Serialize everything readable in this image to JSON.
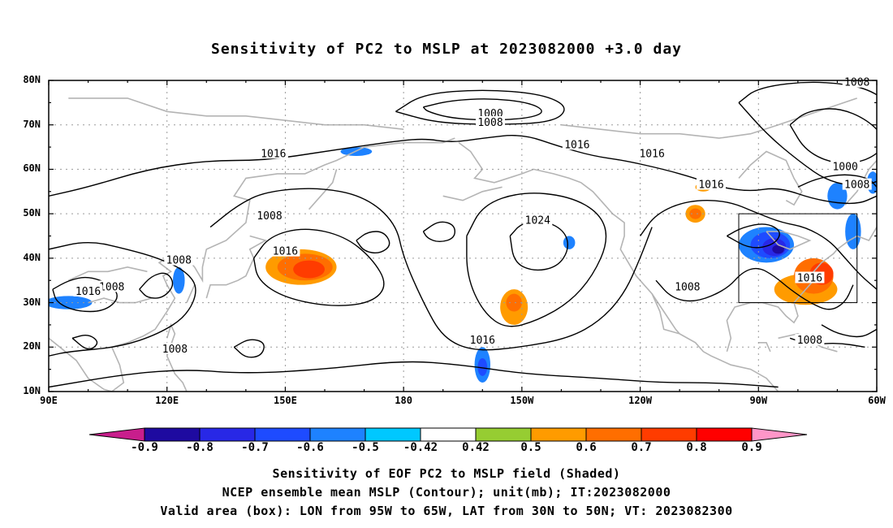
{
  "title": "Sensitivity of PC2 to MSLP at 2023082000 +3.0 day",
  "map": {
    "lon_range": [
      90,
      300
    ],
    "lat_range": [
      10,
      80
    ],
    "lat_ticks": [
      {
        "value": 80,
        "label": "80N"
      },
      {
        "value": 70,
        "label": "70N"
      },
      {
        "value": 60,
        "label": "60N"
      },
      {
        "value": 50,
        "label": "50N"
      },
      {
        "value": 40,
        "label": "40N"
      },
      {
        "value": 30,
        "label": "30N"
      },
      {
        "value": 20,
        "label": "20N"
      },
      {
        "value": 10,
        "label": "10N"
      }
    ],
    "lon_ticks": [
      {
        "value": 90,
        "label": "90E"
      },
      {
        "value": 120,
        "label": "120E"
      },
      {
        "value": 150,
        "label": "150E"
      },
      {
        "value": 180,
        "label": "180"
      },
      {
        "value": 210,
        "label": "150W"
      },
      {
        "value": 240,
        "label": "120W"
      },
      {
        "value": 270,
        "label": "90W"
      },
      {
        "value": 300,
        "label": "60W"
      }
    ],
    "valid_box": {
      "lon": [
        265,
        295
      ],
      "lat": [
        30,
        50
      ]
    },
    "contour_labels": [
      {
        "text": "1000",
        "lon": 202,
        "lat": 72.5
      },
      {
        "text": "1008",
        "lon": 202,
        "lat": 70.5
      },
      {
        "text": "1016",
        "lon": 147,
        "lat": 63.5
      },
      {
        "text": "1016",
        "lon": 224,
        "lat": 65.5
      },
      {
        "text": "1016",
        "lon": 243,
        "lat": 63.5
      },
      {
        "text": "1016",
        "lon": 258,
        "lat": 56.5
      },
      {
        "text": "1008",
        "lon": 295,
        "lat": 79.5
      },
      {
        "text": "1000",
        "lon": 292,
        "lat": 60.5
      },
      {
        "text": "1008",
        "lon": 295,
        "lat": 56.5
      },
      {
        "text": "1008",
        "lon": 146,
        "lat": 49.5
      },
      {
        "text": "1016",
        "lon": 150,
        "lat": 41.5
      },
      {
        "text": "1024",
        "lon": 214,
        "lat": 48.5
      },
      {
        "text": "1008",
        "lon": 123,
        "lat": 39.5
      },
      {
        "text": "1008",
        "lon": 106,
        "lat": 33.5
      },
      {
        "text": "1016",
        "lon": 100,
        "lat": 32.5
      },
      {
        "text": "1008",
        "lon": 122,
        "lat": 19.5
      },
      {
        "text": "1016",
        "lon": 200,
        "lat": 21.5
      },
      {
        "text": "1008",
        "lon": 252,
        "lat": 33.5
      },
      {
        "text": "1016",
        "lon": 283,
        "lat": 35.5
      },
      {
        "text": "1008",
        "lon": 283,
        "lat": 21.5
      }
    ],
    "shaded": [
      {
        "lon": 154,
        "lat": 38,
        "rx": 9,
        "ry": 4,
        "value": 0.5
      },
      {
        "lon": 155,
        "lat": 38,
        "rx": 7,
        "ry": 3,
        "value": 0.6
      },
      {
        "lon": 156,
        "lat": 37.5,
        "rx": 4,
        "ry": 2,
        "value": 0.7
      },
      {
        "lon": 208,
        "lat": 29,
        "rx": 3.5,
        "ry": 4,
        "value": 0.5
      },
      {
        "lon": 208,
        "lat": 30,
        "rx": 2,
        "ry": 2,
        "value": 0.6
      },
      {
        "lon": 282,
        "lat": 33,
        "rx": 8,
        "ry": 3.5,
        "value": 0.5
      },
      {
        "lon": 284,
        "lat": 36,
        "rx": 5,
        "ry": 4,
        "value": 0.6
      },
      {
        "lon": 286,
        "lat": 36.5,
        "rx": 3,
        "ry": 2.5,
        "value": 0.7
      },
      {
        "lon": 254,
        "lat": 50,
        "rx": 2.5,
        "ry": 2,
        "value": 0.5
      },
      {
        "lon": 254,
        "lat": 50,
        "rx": 1.5,
        "ry": 1.2,
        "value": 0.6
      },
      {
        "lon": 256,
        "lat": 56,
        "rx": 2,
        "ry": 1,
        "value": 0.5
      },
      {
        "lon": 272,
        "lat": 43,
        "rx": 7,
        "ry": 4,
        "value": -0.5
      },
      {
        "lon": 273,
        "lat": 43,
        "rx": 5,
        "ry": 3,
        "value": -0.6
      },
      {
        "lon": 274,
        "lat": 42.5,
        "rx": 3,
        "ry": 2,
        "value": -0.7
      },
      {
        "lon": 275,
        "lat": 42,
        "rx": 1.5,
        "ry": 1,
        "value": -0.8
      },
      {
        "lon": 200,
        "lat": 16,
        "rx": 2,
        "ry": 4,
        "value": -0.5
      },
      {
        "lon": 200,
        "lat": 15.5,
        "rx": 1.2,
        "ry": 2,
        "value": -0.6
      },
      {
        "lon": 290,
        "lat": 54,
        "rx": 2.5,
        "ry": 3,
        "value": -0.5
      },
      {
        "lon": 294,
        "lat": 46,
        "rx": 2,
        "ry": 4,
        "value": -0.5
      },
      {
        "lon": 299,
        "lat": 57,
        "rx": 1.5,
        "ry": 2.5,
        "value": -0.5
      },
      {
        "lon": 168,
        "lat": 64,
        "rx": 4,
        "ry": 1,
        "value": -0.5
      },
      {
        "lon": 95,
        "lat": 30,
        "rx": 6,
        "ry": 1.5,
        "value": -0.5
      },
      {
        "lon": 123,
        "lat": 35,
        "rx": 1.5,
        "ry": 3,
        "value": -0.5
      },
      {
        "lon": 222,
        "lat": 43.5,
        "rx": 1.5,
        "ry": 1.5,
        "value": -0.5
      }
    ]
  },
  "colorbar": {
    "labels": [
      "-0.9",
      "-0.8",
      "-0.7",
      "-0.6",
      "-0.5",
      "-0.42",
      "0.42",
      "0.5",
      "0.6",
      "0.7",
      "0.8",
      "0.9"
    ],
    "colors": [
      "#c81e8c",
      "#1e0aa0",
      "#2828e6",
      "#1e4bff",
      "#1e82ff",
      "#00c8ff",
      "#ffffff",
      "#96cd32",
      "#ff9b00",
      "#ff6e00",
      "#ff3c00",
      "#ff0000",
      "#ff96c8"
    ]
  },
  "caption": {
    "line1": "Sensitivity of EOF PC2 to MSLP field (Shaded)",
    "line2": "NCEP ensemble mean MSLP (Contour); unit(mb); IT:2023082000",
    "line3": "Valid area (box): LON from 95W to 65W, LAT from 30N to 50N; VT: 2023082300"
  }
}
